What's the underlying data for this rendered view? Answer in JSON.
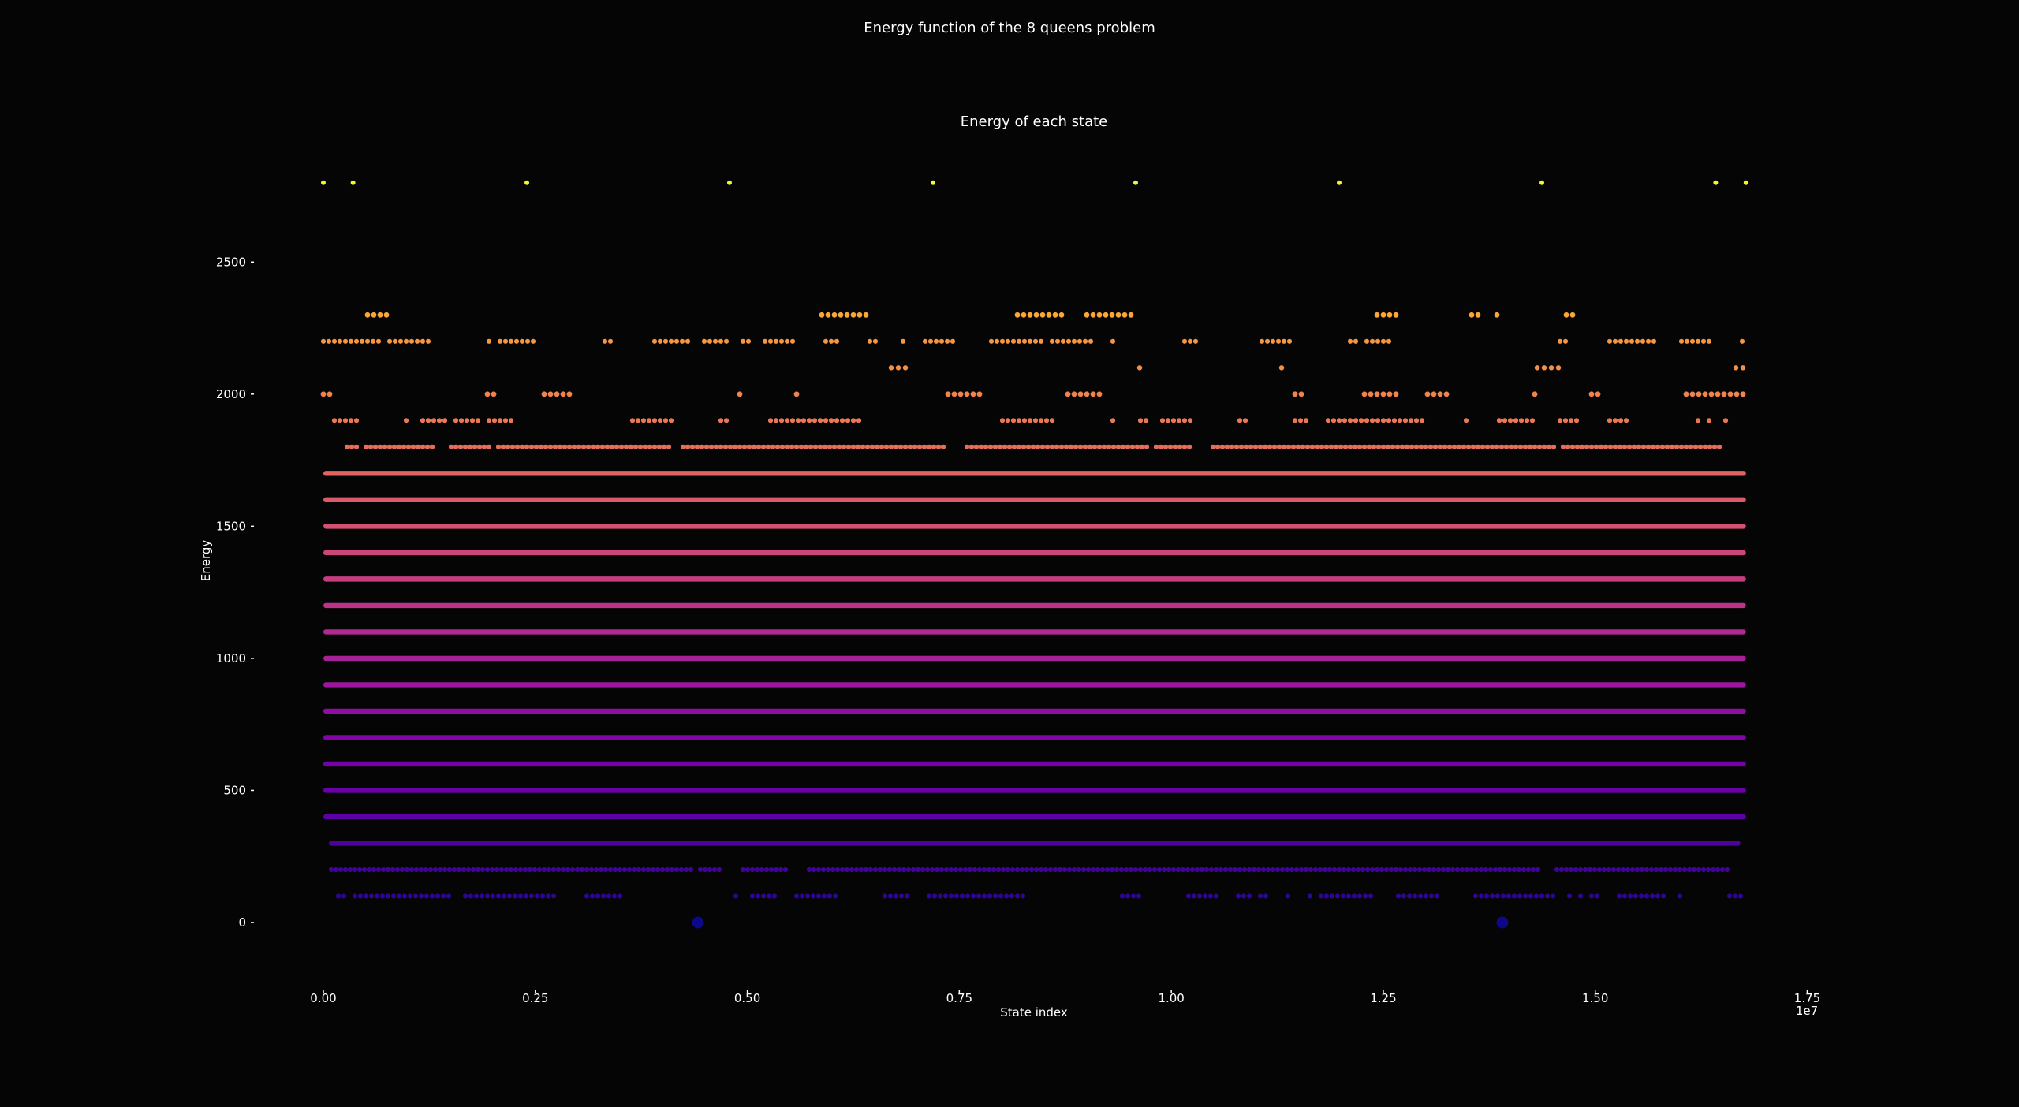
{
  "figure": {
    "suptitle": "Energy function of the 8 queens problem"
  },
  "chart_data": {
    "type": "scatter",
    "title": "Energy of each state",
    "xlabel": "State index",
    "ylabel": "Energy",
    "x_offset_label": "1e7",
    "x_scale": 10000000,
    "xlim": [
      0,
      17500000
    ],
    "ylim": [
      -200,
      2950
    ],
    "xticks": [
      0,
      2500000,
      5000000,
      7500000,
      10000000,
      12500000,
      15000000,
      17500000
    ],
    "xtick_labels": [
      "0.00",
      "0.25",
      "0.50",
      "0.75",
      "1.00",
      "1.25",
      "1.50",
      "1.75"
    ],
    "yticks": [
      0,
      500,
      1000,
      1500,
      2000,
      2500
    ],
    "ytick_labels": [
      "0",
      "500",
      "1000",
      "1500",
      "2000",
      "2500"
    ],
    "x_max_state": 16777216,
    "colormap": "plasma",
    "grid": false,
    "legend": false,
    "background": "#050505",
    "energy_levels": [
      {
        "energy": 0,
        "density": "sparse",
        "color": "#0d0887"
      },
      {
        "energy": 100,
        "density": "medium",
        "color": "#2c0594"
      },
      {
        "energy": 200,
        "density": "dense",
        "color": "#40039c"
      },
      {
        "energy": 300,
        "density": "full",
        "color": "#4c02a1"
      },
      {
        "energy": 400,
        "density": "full",
        "color": "#5c01a6"
      },
      {
        "energy": 500,
        "density": "full",
        "color": "#6a00a8"
      },
      {
        "energy": 600,
        "density": "full",
        "color": "#7701a8"
      },
      {
        "energy": 700,
        "density": "full",
        "color": "#8405a7"
      },
      {
        "energy": 800,
        "density": "full",
        "color": "#8f0da4"
      },
      {
        "energy": 900,
        "density": "full",
        "color": "#9c179e"
      },
      {
        "energy": 1000,
        "density": "full",
        "color": "#a72197"
      },
      {
        "energy": 1100,
        "density": "full",
        "color": "#b12a90"
      },
      {
        "energy": 1200,
        "density": "full",
        "color": "#bb3488"
      },
      {
        "energy": 1300,
        "density": "full",
        "color": "#c33d80"
      },
      {
        "energy": 1400,
        "density": "full",
        "color": "#cc4778"
      },
      {
        "energy": 1500,
        "density": "full",
        "color": "#d35171"
      },
      {
        "energy": 1600,
        "density": "full",
        "color": "#da5b69"
      },
      {
        "energy": 1700,
        "density": "full",
        "color": "#e16462"
      },
      {
        "energy": 1800,
        "density": "dense",
        "color": "#e76f5a"
      },
      {
        "energy": 1900,
        "density": "medium",
        "color": "#ec7853"
      },
      {
        "energy": 2000,
        "density": "sparse",
        "color": "#f1834c"
      },
      {
        "energy": 2100,
        "density": "veryfew",
        "color": "#f48f44"
      },
      {
        "energy": 2200,
        "density": "medium",
        "color": "#f89540"
      },
      {
        "energy": 2300,
        "density": "sparse",
        "color": "#fca636"
      },
      {
        "energy": 2800,
        "density": "points",
        "color": "#f0f921",
        "states": [
          0,
          350000,
          2400000,
          4790000,
          7190000,
          9580000,
          11980000,
          14370000,
          16420000,
          16777216
        ]
      }
    ]
  }
}
